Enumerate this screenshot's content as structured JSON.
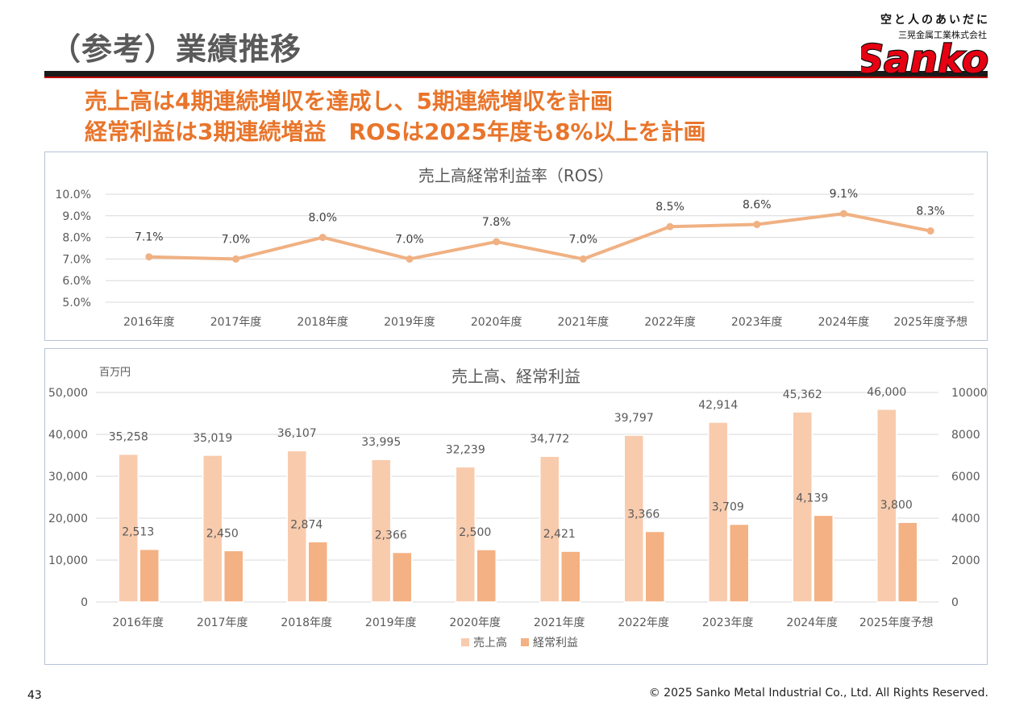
{
  "page": {
    "title": "（参考）業績推移",
    "headline_1": "売上高は4期連続増収を達成し、5期連続増収を計画",
    "headline_2": "経常利益は3期連続増益　ROSは2025年度も8%以上を計画",
    "page_number": "43",
    "copyright": "© 2025 Sanko Metal Industrial Co., Ltd. All Rights Reserved."
  },
  "brand": {
    "tagline": "空と人のあいだに",
    "company": "三晃金属工業株式会社",
    "logo_text": "Sanko",
    "logo_color": "#e60012"
  },
  "chart_data": [
    {
      "type": "line",
      "title": "売上高経常利益率（ROS）",
      "categories": [
        "2016年度",
        "2017年度",
        "2018年度",
        "2019年度",
        "2020年度",
        "2021年度",
        "2022年度",
        "2023年度",
        "2024年度",
        "2025年度予想"
      ],
      "series": [
        {
          "values": [
            7.1,
            7.0,
            8.0,
            7.0,
            7.8,
            7.0,
            8.5,
            8.6,
            9.1,
            8.3
          ],
          "color": "#f0b183"
        }
      ],
      "data_labels": [
        "7.1%",
        "7.0%",
        "8.0%",
        "7.0%",
        "7.8%",
        "7.0%",
        "8.5%",
        "8.6%",
        "9.1%",
        "8.3%"
      ],
      "ylim": [
        5.0,
        10.0
      ],
      "yticks": [
        "5.0%",
        "6.0%",
        "7.0%",
        "8.0%",
        "9.0%",
        "10.0%"
      ],
      "grid": true,
      "legend": "none"
    },
    {
      "type": "bar",
      "title": "売上高、経常利益",
      "unit_label": "百万円",
      "categories": [
        "2016年度",
        "2017年度",
        "2018年度",
        "2019年度",
        "2020年度",
        "2021年度",
        "2022年度",
        "2023年度",
        "2024年度",
        "2025年度予想"
      ],
      "series": [
        {
          "name": "売上高",
          "axis": "left",
          "values": [
            35258,
            35019,
            36107,
            33995,
            32239,
            34772,
            39797,
            42914,
            45362,
            46000
          ],
          "labels": [
            "35,258",
            "35,019",
            "36,107",
            "33,995",
            "32,239",
            "34,772",
            "39,797",
            "42,914",
            "45,362",
            "46,000"
          ],
          "color": "#f8cbad"
        },
        {
          "name": "経常利益",
          "axis": "right",
          "values": [
            2513,
            2450,
            2874,
            2366,
            2500,
            2421,
            3366,
            3709,
            4139,
            3800
          ],
          "labels": [
            "2,513",
            "2,450",
            "2,874",
            "2,366",
            "2,500",
            "2,421",
            "3,366",
            "3,709",
            "4,139",
            "3,800"
          ],
          "color": "#f4b183"
        }
      ],
      "ylim_left": [
        0,
        50000
      ],
      "yticks_left": [
        "0",
        "10,000",
        "20,000",
        "30,000",
        "40,000",
        "50,000"
      ],
      "ylim_right": [
        0,
        10000
      ],
      "yticks_right": [
        "0",
        "2000",
        "4000",
        "6000",
        "8000",
        "10000"
      ],
      "grid": true,
      "legend": "bottom"
    }
  ]
}
